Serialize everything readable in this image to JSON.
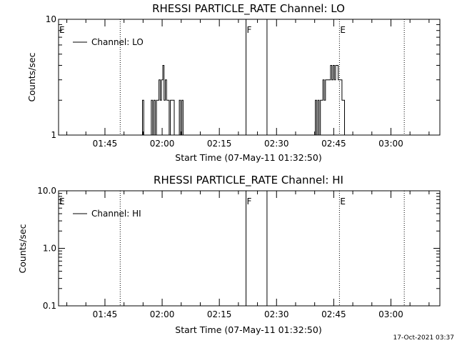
{
  "footer_timestamp": "17-Oct-2021 03:37",
  "chart_data": [
    {
      "type": "line",
      "title": "RHESSI PARTICLE_RATE Channel: LO",
      "xlabel": "Start Time (07-May-11 01:32:50)",
      "ylabel": "Counts/sec",
      "y_scale": "log",
      "ylim": [
        1,
        10
      ],
      "y_tick_labels": [
        "1",
        "10"
      ],
      "xlim": [
        "01:32:50",
        "03:12:50"
      ],
      "x_ticks": [
        "01:45",
        "02:00",
        "02:15",
        "02:30",
        "02:45",
        "03:00"
      ],
      "legend": {
        "placement": "top-left",
        "label": "Channel: LO"
      },
      "markers": [
        {
          "label": "E",
          "time": "01:32:50",
          "style": "dotted"
        },
        {
          "label": "",
          "time": "01:49:00",
          "style": "dotted"
        },
        {
          "label": "F",
          "time": "02:22:00",
          "style": "solid"
        },
        {
          "label": "",
          "time": "02:27:30",
          "style": "solid"
        },
        {
          "label": "E",
          "time": "02:46:30",
          "style": "dotted"
        },
        {
          "label": "",
          "time": "03:03:30",
          "style": "dotted"
        }
      ],
      "series": [
        {
          "name": "Channel: LO",
          "x": [
            "01:54:30",
            "01:54:50",
            "01:55:10",
            "01:55:30",
            "01:55:50",
            "01:56:10",
            "01:56:30",
            "01:56:50",
            "01:57:10",
            "01:57:30",
            "01:57:50",
            "01:58:10",
            "01:58:30",
            "01:58:50",
            "01:59:10",
            "01:59:30",
            "01:59:50",
            "02:00:10",
            "02:00:30",
            "02:00:50",
            "02:01:10",
            "02:01:30",
            "02:01:50",
            "02:02:10",
            "02:02:30",
            "02:02:50",
            "02:03:10",
            "02:03:30",
            "02:03:50",
            "02:04:10",
            "02:04:30",
            "02:04:50",
            "02:05:10",
            "02:05:30",
            "02:05:50",
            "02:06:10",
            "02:06:30",
            "02:06:50",
            "02:39:30",
            "02:39:50",
            "02:40:10",
            "02:40:30",
            "02:40:50",
            "02:41:10",
            "02:41:30",
            "02:41:50",
            "02:42:10",
            "02:42:30",
            "02:42:50",
            "02:43:10",
            "02:43:30",
            "02:43:50",
            "02:44:10",
            "02:44:30",
            "02:44:50",
            "02:45:10",
            "02:45:30",
            "02:45:50",
            "02:46:10",
            "02:46:30",
            "02:46:50",
            "02:47:10",
            "02:47:30",
            "02:47:50"
          ],
          "values": [
            1,
            2,
            1,
            1,
            1,
            1,
            1,
            1,
            2,
            1,
            2,
            1,
            2,
            2,
            3,
            2,
            3,
            4,
            2,
            3,
            2,
            2,
            1,
            2,
            2,
            2,
            1,
            1,
            1,
            1,
            2,
            1,
            2,
            1,
            1,
            1,
            1,
            1,
            1,
            1,
            2,
            1,
            2,
            1,
            2,
            2,
            3,
            2,
            3,
            3,
            3,
            3,
            4,
            3,
            4,
            3,
            4,
            4,
            3,
            3,
            3,
            2,
            2,
            1
          ]
        }
      ]
    },
    {
      "type": "line",
      "title": "RHESSI PARTICLE_RATE Channel: HI",
      "xlabel": "Start Time (07-May-11 01:32:50)",
      "ylabel": "Counts/sec",
      "y_scale": "log",
      "ylim": [
        0.1,
        10
      ],
      "y_tick_labels": [
        "0.1",
        "1.0",
        "10.0"
      ],
      "xlim": [
        "01:32:50",
        "03:12:50"
      ],
      "x_ticks": [
        "01:45",
        "02:00",
        "02:15",
        "02:30",
        "02:45",
        "03:00"
      ],
      "legend": {
        "placement": "top-left",
        "label": "Channel: HI"
      },
      "markers": [
        {
          "label": "E",
          "time": "01:32:50",
          "style": "dotted"
        },
        {
          "label": "",
          "time": "01:49:00",
          "style": "dotted"
        },
        {
          "label": "F",
          "time": "02:22:00",
          "style": "solid"
        },
        {
          "label": "",
          "time": "02:27:30",
          "style": "solid"
        },
        {
          "label": "E",
          "time": "02:46:30",
          "style": "dotted"
        },
        {
          "label": "",
          "time": "03:03:30",
          "style": "dotted"
        }
      ],
      "series": [
        {
          "name": "Channel: HI",
          "x": [],
          "values": []
        }
      ]
    }
  ]
}
